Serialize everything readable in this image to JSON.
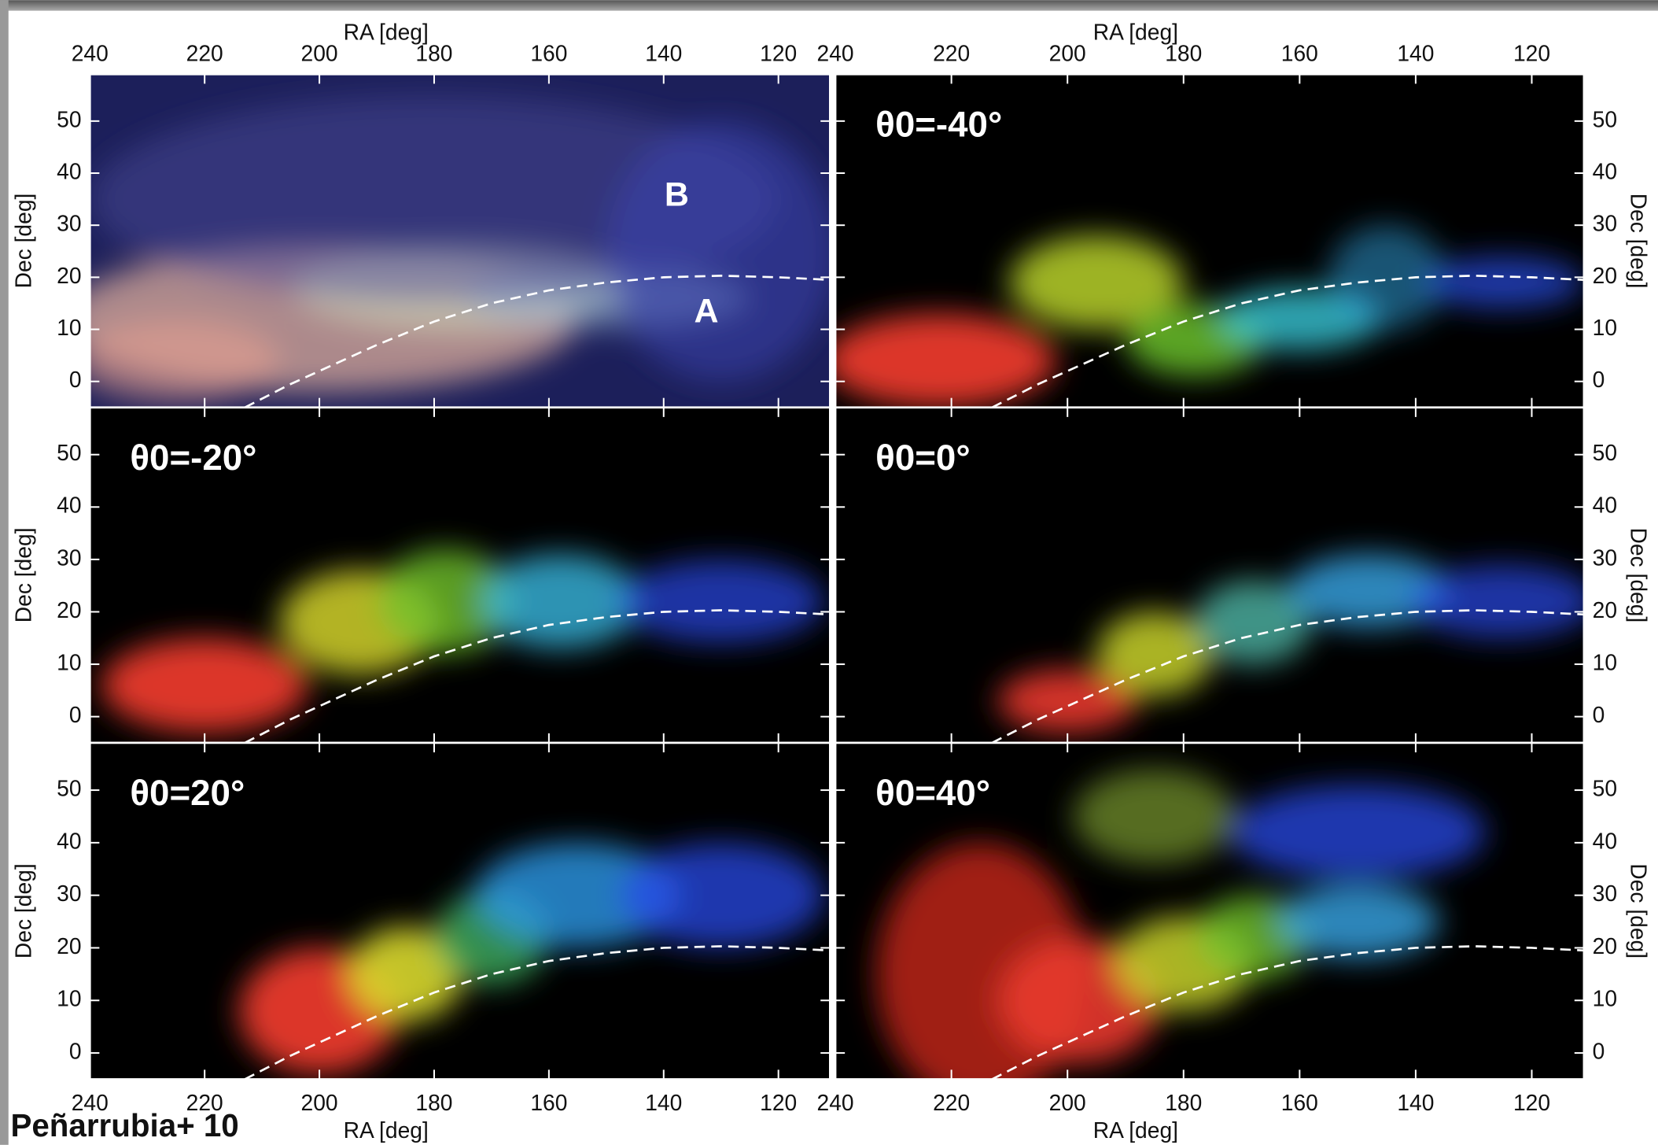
{
  "figure": {
    "annotation": "Peñarrubia+ 10",
    "x_label": "RA [deg]",
    "y_label": "Dec [deg]"
  },
  "chart_data": [
    {
      "type": "line",
      "title": "",
      "annotations": [
        "B",
        "A"
      ],
      "x": [
        213,
        205,
        200,
        190,
        180,
        170,
        160,
        150,
        140,
        130,
        120,
        111
      ],
      "values": [
        -5,
        -0.5,
        2,
        7,
        11.5,
        15,
        17.5,
        19,
        20,
        20.3,
        20,
        19.5
      ],
      "color": "#ffffff",
      "xlim": [
        240,
        111
      ],
      "ylim": [
        -5,
        59
      ],
      "xticks": [
        240,
        220,
        200,
        180,
        160,
        140,
        120
      ],
      "yticks": [
        0,
        10,
        20,
        30,
        40,
        50
      ]
    },
    {
      "type": "line",
      "title": "θ0=-40°",
      "x": [
        213,
        205,
        200,
        190,
        180,
        170,
        160,
        150,
        140,
        130,
        120,
        111
      ],
      "values": [
        -5,
        -0.5,
        2,
        7,
        11.5,
        15,
        17.5,
        19,
        20,
        20.3,
        20,
        19.5
      ],
      "color": "#ffffff",
      "xlim": [
        240,
        111
      ],
      "ylim": [
        -5,
        59
      ],
      "xticks": [
        240,
        220,
        200,
        180,
        160,
        140,
        120
      ],
      "yticks": [
        0,
        10,
        20,
        30,
        40,
        50
      ]
    },
    {
      "type": "line",
      "title": "θ0=-20°",
      "x": [
        213,
        205,
        200,
        190,
        180,
        170,
        160,
        150,
        140,
        130,
        120,
        111
      ],
      "values": [
        -5,
        -0.5,
        2,
        7,
        11.5,
        15,
        17.5,
        19,
        20,
        20.3,
        20,
        19.5
      ],
      "color": "#ffffff",
      "xlim": [
        240,
        111
      ],
      "ylim": [
        -5,
        59
      ],
      "xticks": [
        240,
        220,
        200,
        180,
        160,
        140,
        120
      ],
      "yticks": [
        0,
        10,
        20,
        30,
        40,
        50
      ]
    },
    {
      "type": "line",
      "title": "θ0=0°",
      "x": [
        213,
        205,
        200,
        190,
        180,
        170,
        160,
        150,
        140,
        130,
        120,
        111
      ],
      "values": [
        -5,
        -0.5,
        2,
        7,
        11.5,
        15,
        17.5,
        19,
        20,
        20.3,
        20,
        19.5
      ],
      "color": "#ffffff",
      "xlim": [
        240,
        111
      ],
      "ylim": [
        -5,
        59
      ],
      "xticks": [
        240,
        220,
        200,
        180,
        160,
        140,
        120
      ],
      "yticks": [
        0,
        10,
        20,
        30,
        40,
        50
      ]
    },
    {
      "type": "line",
      "title": "θ0=20°",
      "x": [
        213,
        205,
        200,
        190,
        180,
        170,
        160,
        150,
        140,
        130,
        120,
        111
      ],
      "values": [
        -5,
        -0.5,
        2,
        7,
        11.5,
        15,
        17.5,
        19,
        20,
        20.3,
        20,
        19.5
      ],
      "color": "#ffffff",
      "xlim": [
        240,
        111
      ],
      "ylim": [
        -5,
        59
      ],
      "xticks": [
        240,
        220,
        200,
        180,
        160,
        140,
        120
      ],
      "yticks": [
        0,
        10,
        20,
        30,
        40,
        50
      ]
    },
    {
      "type": "line",
      "title": "θ0=40°",
      "x": [
        213,
        205,
        200,
        190,
        180,
        170,
        160,
        150,
        140,
        130,
        120,
        111
      ],
      "values": [
        -5,
        -0.5,
        2,
        7,
        11.5,
        15,
        17.5,
        19,
        20,
        20.3,
        20,
        19.5
      ],
      "color": "#ffffff",
      "xlim": [
        240,
        111
      ],
      "ylim": [
        -5,
        59
      ],
      "xticks": [
        240,
        220,
        200,
        180,
        160,
        140,
        120
      ],
      "yticks": [
        0,
        10,
        20,
        30,
        40,
        50
      ]
    }
  ]
}
